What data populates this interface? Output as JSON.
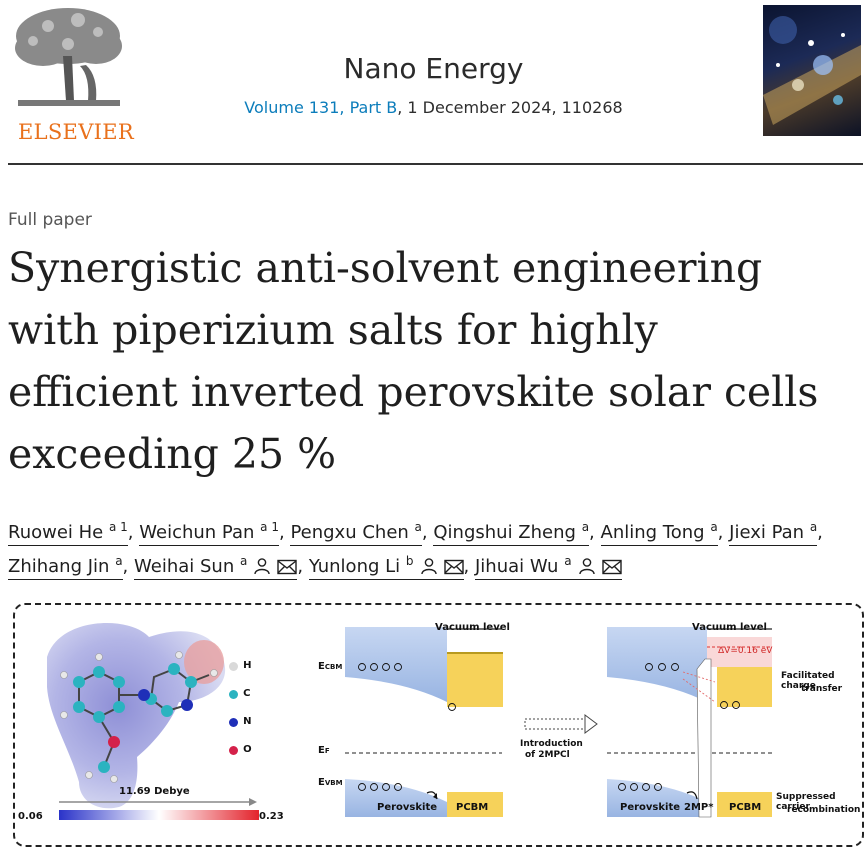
{
  "header": {
    "publisher": "ELSEVIER",
    "journal": "Nano Energy",
    "volume_link": "Volume 131, Part B",
    "volume_rest": ", 1 December 2024, 110268"
  },
  "article": {
    "type": "Full paper",
    "title_lines": [
      "Synergistic anti-solvent engineering",
      "with piperizium salts for highly",
      "efficient inverted perovskite solar cells",
      "exceeding 25 %"
    ]
  },
  "authors": [
    {
      "name": "Ruowei He",
      "sup": "a 1",
      "icons": false,
      "sep": ","
    },
    {
      "name": "Weichun Pan",
      "sup": "a 1",
      "icons": false,
      "sep": ","
    },
    {
      "name": "Pengxu Chen",
      "sup": "a",
      "icons": false,
      "sep": ","
    },
    {
      "name": "Qingshui Zheng",
      "sup": "a",
      "icons": false,
      "sep": ","
    },
    {
      "name": "Anling Tong",
      "sup": "a",
      "icons": false,
      "sep": ","
    },
    {
      "name": "Jiexi Pan",
      "sup": "a",
      "icons": false,
      "sep": ","
    },
    {
      "name": "Zhihang Jin",
      "sup": "a",
      "icons": false,
      "sep": ","
    },
    {
      "name": "Weihai Sun",
      "sup": "a",
      "icons": true,
      "sep": ","
    },
    {
      "name": "Yunlong Li",
      "sup": "b",
      "icons": true,
      "sep": ","
    },
    {
      "name": "Jihuai Wu",
      "sup": "a",
      "icons": true,
      "sep": ""
    }
  ],
  "graphic": {
    "legend": [
      "H",
      "C",
      "N",
      "O"
    ],
    "legend_colors": [
      "#d9d9d9",
      "#2bb3c0",
      "#1f2fb8",
      "#d4214a"
    ],
    "dipole": "11.69 Debye",
    "scale_min": "0.06",
    "scale_max": "0.23",
    "vacuum_level": "Vacuum level",
    "ecbm": "E",
    "ecbm_sub": "CBM",
    "ef": "E",
    "ef_sub": "F",
    "evbm": "E",
    "evbm_sub": "VBM",
    "arrow_label_1": "Introduction",
    "arrow_label_2": "of 2MPCl",
    "delta_v": "ΔV=0.16 eV",
    "perovskite": "Perovskite",
    "pcbm": "PCBM",
    "twomp": "2MP*",
    "facilitated_1": "Facilitated charge",
    "facilitated_2": "transfer",
    "suppressed_1": "Suppressed carrier",
    "suppressed_2": "recombination"
  }
}
